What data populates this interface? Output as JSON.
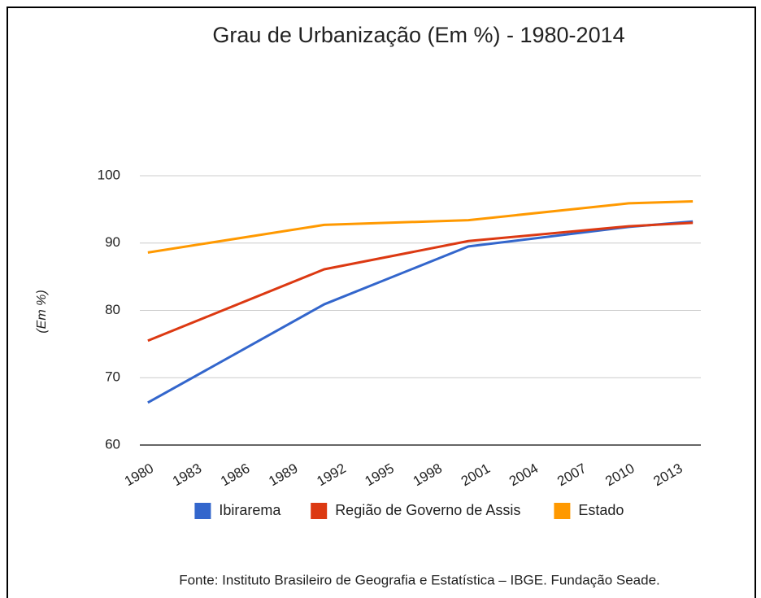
{
  "chart_data": {
    "type": "line",
    "title": "Grau de Urbanização (Em %) - 1980-2014",
    "y_label": "(Em %)",
    "source": "Fonte: Instituto Brasileiro de Geografia e Estatística – IBGE. Fundação Seade.",
    "x": [
      1980,
      1991,
      2000,
      2010,
      2014
    ],
    "series": [
      {
        "name": "Ibirarema",
        "color": "#3366cc",
        "values": [
          66.3,
          80.9,
          89.5,
          92.4,
          93.2
        ]
      },
      {
        "name": "Região de Governo de Assis",
        "color": "#dc3912",
        "values": [
          75.5,
          86.1,
          90.3,
          92.5,
          93.0
        ]
      },
      {
        "name": "Estado",
        "color": "#ff9900",
        "values": [
          88.6,
          92.7,
          93.4,
          95.9,
          96.2
        ]
      }
    ],
    "xlim": [
      1979.5,
      2014.5
    ],
    "xticks": [
      1980,
      1983,
      1986,
      1989,
      1992,
      1995,
      1998,
      2001,
      2004,
      2007,
      2010,
      2013
    ],
    "ylim": [
      60,
      100
    ],
    "yticks": [
      60,
      70,
      80,
      90,
      100
    ],
    "grid": true,
    "legend": "bottom"
  }
}
